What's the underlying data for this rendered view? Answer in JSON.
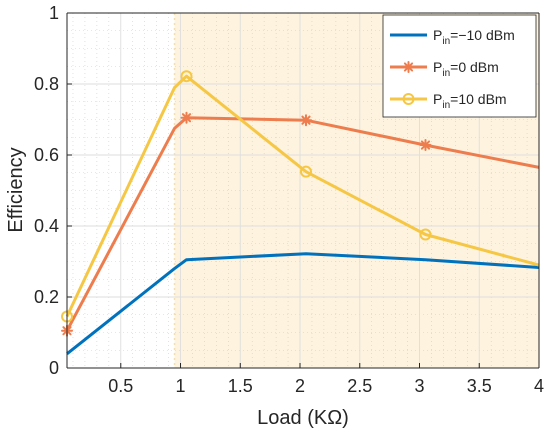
{
  "chart_data": {
    "type": "line",
    "xlabel": "Load (KΩ)",
    "ylabel": "Efficiency",
    "xlim": [
      0.05,
      4
    ],
    "ylim": [
      0,
      1
    ],
    "x_ticks": [
      0.5,
      1,
      1.5,
      2,
      2.5,
      3,
      3.5,
      4
    ],
    "x_tick_labels": [
      "0.5",
      "1",
      "1.5",
      "2",
      "2.5",
      "3",
      "3.5",
      "4"
    ],
    "y_ticks": [
      0,
      0.2,
      0.4,
      0.6,
      0.8,
      1
    ],
    "y_tick_labels": [
      "0",
      "0.2",
      "0.4",
      "0.6",
      "0.8",
      "1"
    ],
    "grid": true,
    "minor_grid": true,
    "shaded_region": {
      "x_from": 0.95,
      "x_to": 4,
      "color": "#fdf3df"
    },
    "legend_position": "top-right",
    "series": [
      {
        "name_main": "P",
        "name_sub": "in",
        "name_rest": "=−10 dBm",
        "color": "#0072bd",
        "marker": "none",
        "x": [
          0.05,
          0.95,
          1.05,
          2.05,
          3.05,
          4
        ],
        "y": [
          0.04,
          0.28,
          0.305,
          0.322,
          0.305,
          0.283
        ],
        "marker_x": [],
        "marker_y": []
      },
      {
        "name_main": "P",
        "name_sub": "in",
        "name_rest": "=0 dBm",
        "color": "#ee7d4e",
        "marker": "asterisk",
        "x": [
          0.05,
          0.95,
          1.05,
          2.05,
          3.05,
          4
        ],
        "y": [
          0.105,
          0.675,
          0.705,
          0.698,
          0.628,
          0.565
        ],
        "marker_x": [
          0.05,
          1.05,
          2.05,
          3.05
        ],
        "marker_y": [
          0.105,
          0.705,
          0.698,
          0.628
        ]
      },
      {
        "name_main": "P",
        "name_sub": "in",
        "name_rest": "=10 dBm",
        "color": "#f6c744",
        "marker": "circle",
        "x": [
          0.05,
          0.95,
          1.05,
          2.05,
          3.05,
          4
        ],
        "y": [
          0.145,
          0.79,
          0.822,
          0.553,
          0.376,
          0.29
        ],
        "marker_x": [
          0.05,
          1.05,
          2.05,
          3.05
        ],
        "marker_y": [
          0.145,
          0.822,
          0.553,
          0.376
        ]
      }
    ]
  }
}
